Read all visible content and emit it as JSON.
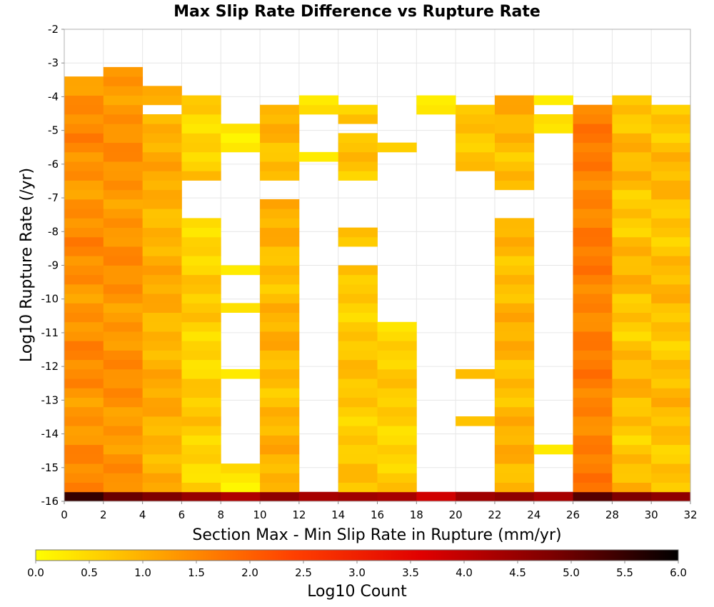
{
  "chart_data": {
    "type": "heatmap",
    "title": "Max Slip Rate Difference vs Rupture Rate",
    "xlabel": "Section Max - Min Slip Rate in Rupture (mm/yr)",
    "ylabel": "Log10 Rupture Rate (/yr)",
    "colorbar_label": "Log10 Count",
    "xlim": [
      0,
      32
    ],
    "ylim": [
      -16,
      -2
    ],
    "x_ticks": [
      0,
      2,
      4,
      6,
      8,
      10,
      12,
      14,
      16,
      18,
      20,
      22,
      24,
      26,
      28,
      30,
      32
    ],
    "y_ticks": [
      -2,
      -3,
      -4,
      -5,
      -6,
      -7,
      -8,
      -9,
      -10,
      -11,
      -12,
      -13,
      -14,
      -15,
      -16
    ],
    "colorbar_ticks": [
      0.0,
      0.5,
      1.0,
      1.5,
      2.0,
      2.5,
      3.0,
      3.5,
      4.0,
      4.5,
      5.0,
      5.5,
      6.0
    ],
    "colorbar_tick_labels": [
      "0.0",
      "0.5",
      "1.0",
      "1.5",
      "2.0",
      "2.5",
      "3.0",
      "3.5",
      "4.0",
      "4.5",
      "5.0",
      "5.5",
      "6.0"
    ],
    "color_range": [
      0,
      6
    ],
    "grid": true,
    "colorbar_position": "bottom",
    "colormap_stops": [
      "#ffff00",
      "#ffa000",
      "#ff4000",
      "#e00000",
      "#7f0000",
      "#000000"
    ],
    "x_bin_width": 2,
    "y_bin_height": 0.28,
    "y_bin_start": -16,
    "columns": [
      {
        "x0": 0,
        "y_range": [
          -15.72,
          -3.28
        ],
        "base": 1.4,
        "variation": 0.35,
        "bottom_value": 5.5
      },
      {
        "x0": 2,
        "y_range": [
          -15.72,
          -3.0
        ],
        "base": 1.35,
        "variation": 0.3,
        "bottom_value": 5.0
      },
      {
        "x0": 4,
        "y_range": [
          -15.72,
          -3.56
        ],
        "base": 1.0,
        "variation": 0.3,
        "bottom_value": 4.8,
        "gaps": [
          [
            -4.4,
            -4.12
          ]
        ]
      },
      {
        "x0": 6,
        "y_range": [
          -15.72,
          -3.84
        ],
        "base": 0.6,
        "variation": 0.35,
        "bottom_value": 4.5,
        "gaps": [
          [
            -7.6,
            -6.6
          ]
        ]
      },
      {
        "x0": 8,
        "y_range": [
          -15.72,
          -4.68
        ],
        "base": 0.4,
        "variation": 0.3,
        "bottom_value": 4.2,
        "gaps": [
          [
            -9.0,
            -5.6
          ],
          [
            -10.2,
            -9.4
          ],
          [
            -12.0,
            -10.5
          ],
          [
            -15.0,
            -12.4
          ]
        ]
      },
      {
        "x0": 10,
        "y_range": [
          -15.72,
          -4.12
        ],
        "base": 0.9,
        "variation": 0.35,
        "bottom_value": 4.6,
        "gaps": [
          [
            -7.0,
            -6.4
          ]
        ]
      },
      {
        "x0": 12,
        "y_range": [
          -15.72,
          -3.84
        ],
        "base": 0.3,
        "variation": 0.2,
        "bottom_value": 4.3,
        "gaps": [
          [
            -15.72,
            -5.9
          ],
          [
            -5.6,
            -4.4
          ]
        ]
      },
      {
        "x0": 14,
        "y_range": [
          -15.72,
          -4.12
        ],
        "base": 0.7,
        "variation": 0.3,
        "bottom_value": 4.4,
        "gaps": [
          [
            -7.8,
            -6.4
          ],
          [
            -8.9,
            -8.4
          ],
          [
            -4.96,
            -4.68
          ]
        ]
      },
      {
        "x0": 16,
        "y_range": [
          -15.72,
          -5.28
        ],
        "base": 0.6,
        "variation": 0.3,
        "bottom_value": 4.3,
        "gaps": [
          [
            -8.9,
            -5.56
          ],
          [
            -10.7,
            -9.0
          ]
        ]
      },
      {
        "x0": 18,
        "y_range": [
          -15.72,
          -3.84
        ],
        "base": 0.3,
        "variation": 0.15,
        "bottom_value": 3.8,
        "gaps": [
          [
            -15.72,
            -4.4
          ]
        ]
      },
      {
        "x0": 20,
        "y_range": [
          -15.72,
          -4.12
        ],
        "base": 0.8,
        "variation": 0.3,
        "bottom_value": 4.4,
        "gaps": [
          [
            -11.1,
            -6.1
          ],
          [
            -12.1,
            -11.3
          ],
          [
            -13.6,
            -12.4
          ],
          [
            -15.72,
            -13.8
          ]
        ]
      },
      {
        "x0": 22,
        "y_range": [
          -15.72,
          -3.84
        ],
        "base": 0.9,
        "variation": 0.35,
        "bottom_value": 4.6,
        "gaps": [
          [
            -7.56,
            -6.84
          ]
        ]
      },
      {
        "x0": 24,
        "y_range": [
          -15.72,
          -3.84
        ],
        "base": 0.3,
        "variation": 0.15,
        "bottom_value": 4.3,
        "gaps": [
          [
            -14.44,
            -5.0
          ],
          [
            -15.72,
            -14.72
          ],
          [
            -4.4,
            -4.12
          ]
        ]
      },
      {
        "x0": 26,
        "y_range": [
          -15.72,
          -4.12
        ],
        "base": 1.6,
        "variation": 0.3,
        "bottom_value": 5.2
      },
      {
        "x0": 28,
        "y_range": [
          -15.72,
          -3.84
        ],
        "base": 0.8,
        "variation": 0.4,
        "bottom_value": 4.8
      },
      {
        "x0": 30,
        "y_range": [
          -15.72,
          -4.12
        ],
        "base": 0.8,
        "variation": 0.35,
        "bottom_value": 4.6
      }
    ]
  }
}
